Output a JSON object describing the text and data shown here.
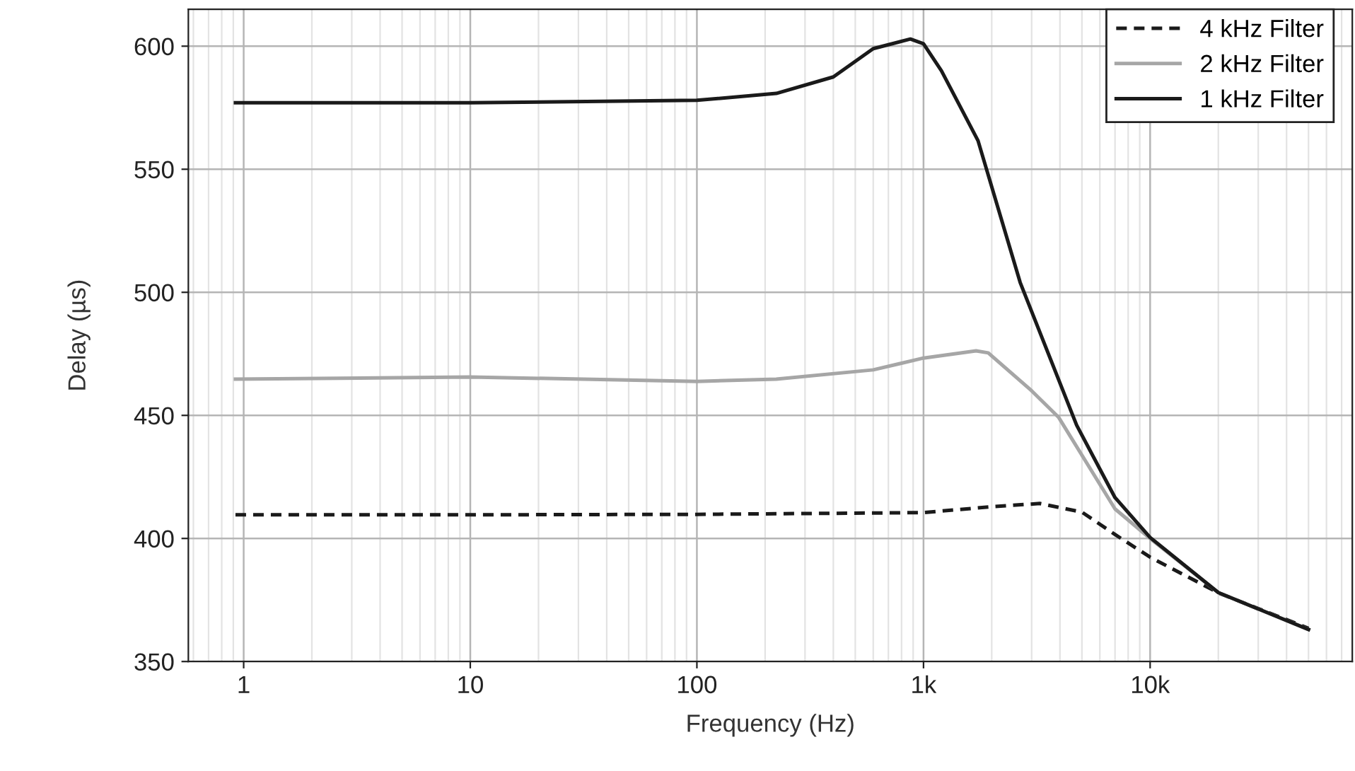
{
  "chart_data": {
    "type": "line",
    "xlabel": "Frequency (Hz)",
    "ylabel": "Delay (µs)",
    "log": "x",
    "grid": true,
    "legend": "top right",
    "marker": "none",
    "xlim": [
      0.57,
      78000
    ],
    "xticks": [
      1,
      10,
      100,
      {
        "value": 1000,
        "label": "1k"
      },
      {
        "value": 10000,
        "label": "10k"
      }
    ],
    "ylim": [
      350,
      615
    ],
    "yticks": [
      350,
      400,
      450,
      500,
      550,
      600
    ],
    "series": [
      {
        "name": "4 kHz Filter",
        "color": "#1a1a1a",
        "line_style": "dashed",
        "x": [
          0.92,
          10,
          100,
          1000,
          2000,
          3260,
          5000,
          7000,
          10000,
          20000,
          50000
        ],
        "values": [
          409.6,
          409.6,
          409.8,
          410.5,
          412.9,
          414.2,
          410.7,
          401.6,
          392.4,
          377.9,
          363.5
        ]
      },
      {
        "name": "2 kHz Filter",
        "color": "#a6a6a6",
        "line_style": "solid",
        "x": [
          0.92,
          10,
          100,
          224,
          600,
          1000,
          1706,
          1930,
          3000,
          3940,
          7000,
          10000,
          20000,
          50000
        ],
        "values": [
          464.7,
          465.6,
          463.8,
          464.7,
          468.5,
          473.3,
          476.2,
          475.4,
          460,
          449.3,
          412,
          400,
          378,
          363
        ]
      },
      {
        "name": "1 kHz Filter",
        "color": "#1a1a1a",
        "line_style": "solid",
        "x": [
          0.92,
          10,
          100,
          224,
          400,
          600,
          875,
          1000,
          1200,
          1740,
          2670,
          4740,
          7000,
          10000,
          20000,
          50000
        ],
        "values": [
          577,
          577,
          578,
          580.8,
          587.5,
          599,
          602.9,
          601,
          590,
          561.6,
          504,
          446,
          416.6,
          400.4,
          378,
          363
        ]
      }
    ]
  }
}
